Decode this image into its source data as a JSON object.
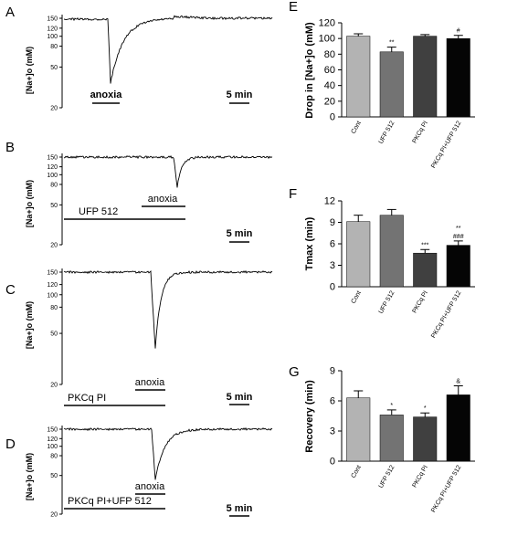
{
  "chart_data": [
    {
      "type": "line",
      "panel": "A",
      "ylabel": "[Na+]o (mM)",
      "yscale": "log",
      "yticks": [
        20,
        50,
        80,
        100,
        120,
        150
      ],
      "annotations": [
        "anoxia",
        "5 min"
      ],
      "trace": {
        "baseline": 150,
        "min": 35
      }
    },
    {
      "type": "line",
      "panel": "B",
      "ylabel": "[Na+]o (mM)",
      "yscale": "log",
      "yticks": [
        20,
        50,
        80,
        100,
        120,
        150
      ],
      "annotations": [
        "UFP 512",
        "anoxia",
        "5 min"
      ],
      "trace": {
        "baseline": 150,
        "min": 75
      }
    },
    {
      "type": "line",
      "panel": "C",
      "ylabel": "[Na+]o (mM)",
      "yscale": "log",
      "yticks": [
        20,
        50,
        80,
        100,
        120,
        150
      ],
      "annotations": [
        "PKCq PI",
        "anoxia",
        "5 min"
      ],
      "trace": {
        "baseline": 150,
        "min": 38
      }
    },
    {
      "type": "line",
      "panel": "D",
      "ylabel": "[Na+]o (mM)",
      "yscale": "log",
      "yticks": [
        20,
        50,
        80,
        100,
        120,
        150
      ],
      "annotations": [
        "PKCq PI+UFP 512",
        "anoxia",
        "5 min"
      ],
      "trace": {
        "baseline": 150,
        "min": 45
      }
    },
    {
      "type": "bar",
      "panel": "E",
      "ylabel": "Drop in [Na+]o (mM)",
      "ylim": [
        0,
        120
      ],
      "yticks": [
        0,
        20,
        40,
        60,
        80,
        100,
        120
      ],
      "categories": [
        "Cont",
        "UFP 512",
        "PKCq PI",
        "PKCq PI+UFP 512"
      ],
      "values": [
        103,
        83,
        103,
        100
      ],
      "errors": [
        3,
        6,
        2,
        4
      ],
      "colors": [
        "#b3b3b3",
        "#737373",
        "#404040",
        "#050505"
      ],
      "significance": [
        "",
        "**",
        "",
        "#"
      ]
    },
    {
      "type": "bar",
      "panel": "F",
      "ylabel": "Tmax (min)",
      "ylim": [
        0,
        12
      ],
      "yticks": [
        0,
        3,
        6,
        9,
        12
      ],
      "categories": [
        "Cont",
        "UFP 512",
        "PKCq PI",
        "PKCq PI+UFP 512"
      ],
      "values": [
        9.1,
        10.0,
        4.7,
        5.8
      ],
      "errors": [
        0.9,
        0.8,
        0.5,
        0.6
      ],
      "colors": [
        "#b3b3b3",
        "#737373",
        "#404040",
        "#050505"
      ],
      "significance": [
        "",
        "",
        "***",
        "**\n###"
      ]
    },
    {
      "type": "bar",
      "panel": "G",
      "ylabel": "Recovery (min)",
      "ylim": [
        0,
        9
      ],
      "yticks": [
        0,
        3,
        6,
        9
      ],
      "categories": [
        "Cont",
        "UFP 512",
        "PKCq PI",
        "PKCq PI+UFP 512"
      ],
      "values": [
        6.3,
        4.6,
        4.4,
        6.6
      ],
      "errors": [
        0.7,
        0.5,
        0.4,
        0.9
      ],
      "colors": [
        "#b3b3b3",
        "#737373",
        "#404040",
        "#050505"
      ],
      "significance": [
        "",
        "*",
        "*",
        "&"
      ]
    }
  ]
}
